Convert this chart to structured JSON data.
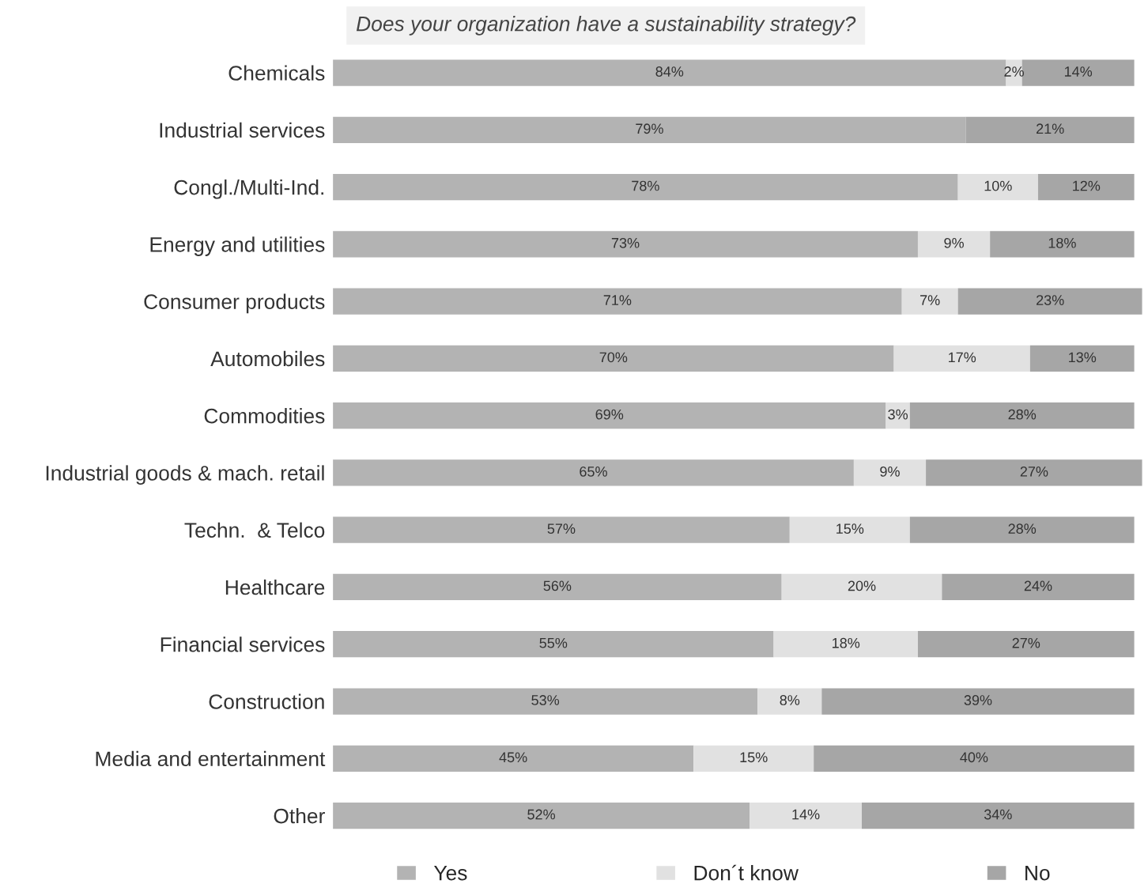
{
  "chart_data": {
    "type": "bar",
    "orientation": "horizontal",
    "stacked": true,
    "title": "Does your organization have a sustainability strategy?",
    "categories": [
      "Chemicals",
      "Industrial services",
      "Congl./Multi-Ind.",
      "Energy and utilities",
      "Consumer products",
      "Automobiles",
      "Commodities",
      "Industrial goods & mach. retail",
      "Techn.  & Telco",
      "Healthcare",
      "Financial services",
      "Construction",
      "Media and entertainment",
      "Other"
    ],
    "series": [
      {
        "name": "Yes",
        "color": "#b3b3b3",
        "values": [
          84,
          79,
          78,
          73,
          71,
          70,
          69,
          65,
          57,
          56,
          55,
          53,
          45,
          52
        ],
        "value_labels": [
          "84%",
          "79%",
          "78%",
          "73%",
          "71%",
          "70%",
          "69%",
          "65%",
          "57%",
          "56%",
          "55%",
          "53%",
          "45%",
          "52%"
        ]
      },
      {
        "name": "Don´t know",
        "color": "#e1e1e1",
        "values": [
          2,
          null,
          10,
          9,
          7,
          17,
          3,
          9,
          15,
          20,
          18,
          8,
          15,
          14
        ],
        "value_labels": [
          "2%",
          null,
          "10%",
          "9%",
          "7%",
          "17%",
          "3%",
          "9%",
          "15%",
          "20%",
          "18%",
          "8%",
          "15%",
          "14%"
        ]
      },
      {
        "name": "No",
        "color": "#a6a6a6",
        "values": [
          14,
          21,
          12,
          18,
          23,
          13,
          28,
          27,
          28,
          24,
          27,
          39,
          40,
          34
        ],
        "value_labels": [
          "14%",
          "21%",
          "12%",
          "18%",
          "23%",
          "13%",
          "28%",
          "27%",
          "28%",
          "24%",
          "27%",
          "39%",
          "40%",
          "34%"
        ]
      }
    ],
    "xlim": [
      0,
      101
    ],
    "tick_labels": "y",
    "grid": false,
    "legend": "bottom"
  }
}
